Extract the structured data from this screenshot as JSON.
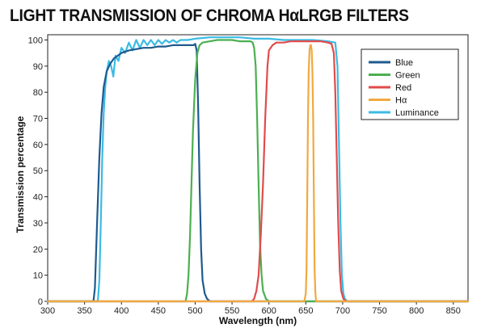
{
  "chart_data": {
    "type": "line",
    "title": "LIGHT TRANSMISSION OF CHROMA HαLRGB FILTERS",
    "xlabel": "Wavelength (nm)",
    "ylabel": "Transmission percentage",
    "xlim": [
      300,
      870
    ],
    "ylim": [
      0,
      102
    ],
    "xticks": [
      300,
      350,
      400,
      450,
      500,
      550,
      600,
      650,
      700,
      750,
      800,
      850
    ],
    "yticks": [
      0,
      10,
      20,
      30,
      40,
      50,
      60,
      70,
      80,
      90,
      100
    ],
    "grid": false,
    "legend_position": "top-right",
    "series": [
      {
        "name": "Blue",
        "color": "#1f5a8e",
        "x": [
          300,
          362,
          364,
          367,
          370,
          373,
          376,
          380,
          385,
          390,
          395,
          400,
          410,
          420,
          430,
          440,
          450,
          460,
          470,
          480,
          490,
          495,
          498,
          500,
          502,
          504,
          506,
          508,
          510,
          513,
          516,
          520,
          530,
          870
        ],
        "y": [
          0,
          0,
          5,
          30,
          55,
          72,
          82,
          88,
          91,
          93,
          94,
          95,
          96,
          96.5,
          97,
          97,
          97.5,
          97.5,
          98,
          98,
          98,
          98,
          98,
          98.5,
          96,
          75,
          45,
          20,
          8,
          3,
          1,
          0,
          0,
          0
        ]
      },
      {
        "name": "Green",
        "color": "#4caf50",
        "x": [
          300,
          487,
          489,
          491,
          493,
          495,
          497,
          500,
          503,
          506,
          510,
          520,
          530,
          540,
          550,
          560,
          570,
          575,
          578,
          580,
          582,
          584,
          586,
          588,
          590,
          592,
          596,
          600,
          870
        ],
        "y": [
          0,
          0,
          3,
          10,
          25,
          45,
          65,
          85,
          95,
          98,
          99,
          99.5,
          100,
          100,
          100,
          99.5,
          99.5,
          99.5,
          99,
          97,
          90,
          70,
          45,
          22,
          10,
          4,
          1,
          0,
          0
        ]
      },
      {
        "name": "Red",
        "color": "#e14b4b",
        "x": [
          300,
          577,
          580,
          583,
          586,
          589,
          592,
          595,
          598,
          600,
          605,
          610,
          620,
          630,
          640,
          650,
          660,
          670,
          680,
          685,
          688,
          690,
          692,
          694,
          696,
          698,
          701,
          705,
          710,
          870
        ],
        "y": [
          0,
          0,
          1,
          4,
          10,
          25,
          45,
          70,
          90,
          96,
          98,
          99,
          99,
          99.5,
          99.5,
          99.5,
          99.5,
          99.5,
          99,
          98.5,
          95,
          80,
          55,
          30,
          12,
          4,
          1,
          0,
          0,
          0
        ]
      },
      {
        "name": "Hα",
        "color": "#f0a940",
        "x": [
          300,
          648,
          650,
          651,
          652,
          653,
          654,
          655,
          656,
          657,
          658,
          659,
          660,
          661,
          662,
          663,
          664,
          666,
          870
        ],
        "y": [
          0,
          0,
          3,
          12,
          40,
          70,
          88,
          96,
          98,
          98,
          96,
          88,
          70,
          40,
          12,
          3,
          0,
          0,
          0
        ]
      },
      {
        "name": "Luminance",
        "color": "#3bbbe3",
        "x": [
          300,
          368,
          370,
          372,
          374,
          376,
          378,
          380,
          383,
          386,
          389,
          392,
          396,
          400,
          405,
          410,
          415,
          420,
          425,
          430,
          435,
          440,
          445,
          450,
          455,
          460,
          465,
          470,
          475,
          480,
          490,
          500,
          520,
          540,
          560,
          580,
          600,
          620,
          640,
          660,
          680,
          690,
          693,
          695,
          697,
          699,
          701,
          703,
          706,
          710,
          870
        ],
        "y": [
          0,
          0,
          8,
          30,
          55,
          72,
          82,
          88,
          92,
          90,
          86,
          94,
          92,
          97,
          95,
          99,
          96,
          100,
          97,
          100,
          98,
          100,
          98,
          100,
          98.5,
          100,
          99,
          100,
          99,
          100,
          100,
          100.5,
          101,
          101,
          101,
          100.5,
          100.5,
          100,
          100,
          100,
          99.5,
          99,
          90,
          60,
          30,
          10,
          3,
          1,
          0,
          0,
          0
        ]
      }
    ]
  }
}
